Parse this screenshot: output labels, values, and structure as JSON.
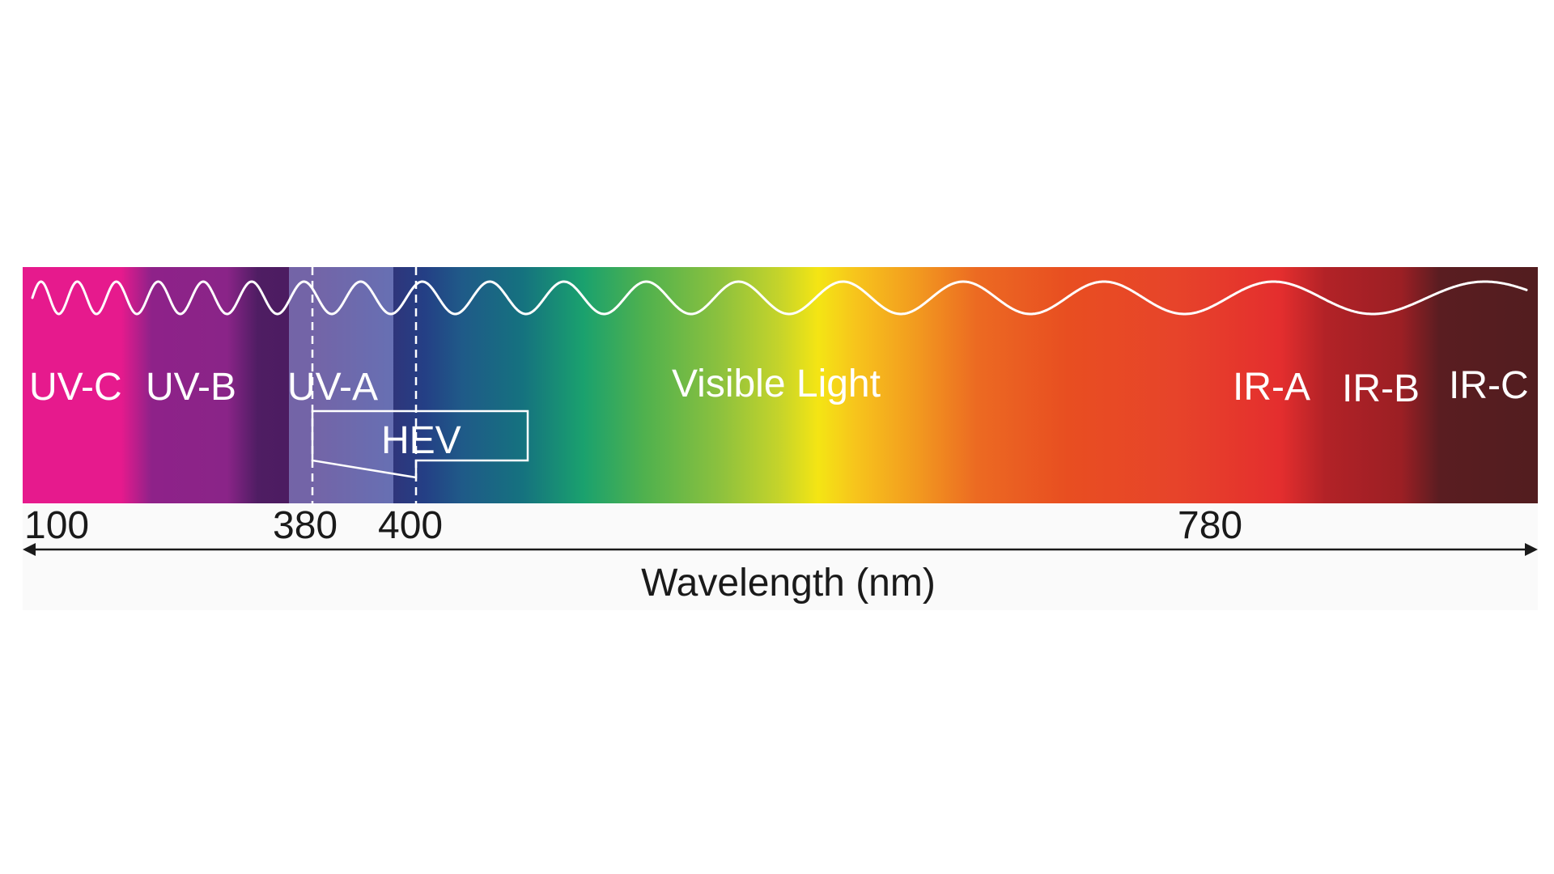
{
  "colors": {
    "uv_c": "#e61a8d",
    "uv_b": "#8a2488",
    "uv_a": "#4b1c60",
    "visible_green": "#4fb14e",
    "visible_yellow": "#f4e514",
    "ir_a": "#e42e2e",
    "ir_b": "#9b1f24",
    "ir_c": "#521d1f",
    "wave": "#ffffff",
    "axis": "#1a1a1a"
  },
  "bands": {
    "uv_c": "UV-C",
    "uv_b": "UV-B",
    "uv_a": "UV-A",
    "visible": "Visible Light",
    "ir_a": "IR-A",
    "ir_b": "IR-B",
    "ir_c": "IR-C"
  },
  "hev_label": "HEV",
  "ticks": {
    "t100": "100",
    "t380": "380",
    "t400": "400",
    "t780": "780"
  },
  "axis_title": "Wavelength (nm)"
}
